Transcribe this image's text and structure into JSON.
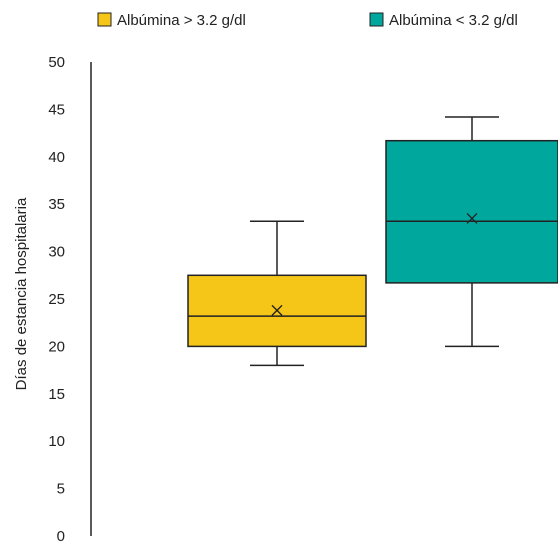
{
  "chart_data": {
    "type": "boxplot",
    "title": "",
    "xlabel": "",
    "ylabel": "Días de estancia hospitalaria",
    "ylim": [
      0,
      50
    ],
    "yticks": [
      0,
      5,
      10,
      15,
      20,
      25,
      30,
      35,
      40,
      45,
      50
    ],
    "grid": false,
    "legend_position": "top",
    "series": [
      {
        "name": "Albúmina > 3.2 g/dl",
        "color": "#f5c518",
        "whisker_low": 18,
        "q1": 20,
        "median": 23.2,
        "q3": 27.5,
        "whisker_high": 33.2,
        "mean": 23.8
      },
      {
        "name": "Albúmina < 3.2 g/dl",
        "color": "#00a79d",
        "whisker_low": 20,
        "q1": 26.7,
        "median": 33.2,
        "q3": 41.7,
        "whisker_high": 44.2,
        "mean": 33.5
      }
    ]
  }
}
